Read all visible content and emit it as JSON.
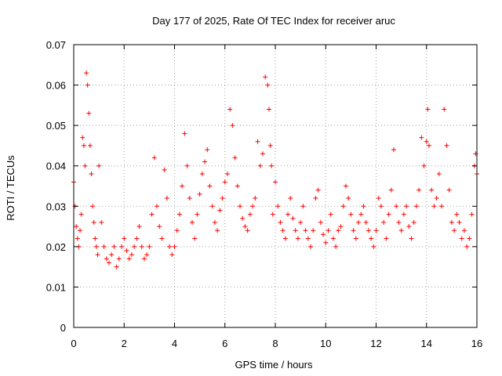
{
  "chart_data": {
    "type": "scatter",
    "title": "Day 177 of 2025, Rate Of TEC Index for receiver aruc",
    "xlabel": "GPS time / hours",
    "ylabel": "ROTI / TECUs",
    "xlim": [
      0,
      16
    ],
    "ylim": [
      0,
      0.07
    ],
    "x_ticks": [
      0,
      2,
      4,
      6,
      8,
      10,
      12,
      14,
      16
    ],
    "x_tick_labels": [
      "0",
      "2",
      "4",
      "6",
      "8",
      "10",
      "12",
      "14",
      "16"
    ],
    "y_ticks": [
      0,
      0.01,
      0.02,
      0.03,
      0.04,
      0.05,
      0.06,
      0.07
    ],
    "y_tick_labels": [
      "0",
      "0.01",
      "0.02",
      "0.03",
      "0.04",
      "0.05",
      "0.06",
      "0.07"
    ],
    "grid": true,
    "legend": "none",
    "marker": "plus",
    "color": "#ff0000",
    "series": [
      {
        "x": [
          0.0,
          0.05,
          0.1,
          0.15,
          0.2,
          0.25,
          0.3,
          0.35,
          0.4,
          0.45,
          0.5,
          0.55,
          0.6,
          0.65,
          0.7,
          0.75,
          0.8,
          0.85,
          0.9,
          0.95,
          1.0,
          1.1,
          1.2,
          1.3,
          1.4,
          1.5,
          1.6,
          1.7,
          1.8,
          1.9,
          2.0,
          2.1,
          2.2,
          2.3,
          2.4,
          2.5,
          2.6,
          2.7,
          2.8,
          2.9,
          3.0,
          3.1,
          3.2,
          3.3,
          3.4,
          3.5,
          3.6,
          3.7,
          3.8,
          3.9,
          4.0,
          4.1,
          4.2,
          4.3,
          4.4,
          4.5,
          4.6,
          4.7,
          4.8,
          4.9,
          5.0,
          5.1,
          5.2,
          5.3,
          5.4,
          5.5,
          5.6,
          5.7,
          5.8,
          5.9,
          6.0,
          6.1,
          6.2,
          6.3,
          6.4,
          6.5,
          6.6,
          6.7,
          6.8,
          6.9,
          7.0,
          7.1,
          7.2,
          7.3,
          7.4,
          7.5,
          7.6,
          7.7,
          7.75,
          7.8,
          7.85,
          7.9,
          8.0,
          8.1,
          8.2,
          8.3,
          8.4,
          8.5,
          8.6,
          8.7,
          8.8,
          8.9,
          9.0,
          9.1,
          9.2,
          9.3,
          9.4,
          9.5,
          9.6,
          9.7,
          9.8,
          9.9,
          10.0,
          10.1,
          10.2,
          10.3,
          10.4,
          10.5,
          10.6,
          10.7,
          10.8,
          10.9,
          11.0,
          11.1,
          11.2,
          11.3,
          11.4,
          11.5,
          11.6,
          11.7,
          11.8,
          11.9,
          12.0,
          12.1,
          12.2,
          12.3,
          12.4,
          12.5,
          12.6,
          12.7,
          12.8,
          12.9,
          13.0,
          13.1,
          13.2,
          13.3,
          13.4,
          13.5,
          13.6,
          13.7,
          13.8,
          13.9,
          14.0,
          14.05,
          14.1,
          14.2,
          14.3,
          14.4,
          14.5,
          14.6,
          14.7,
          14.8,
          14.9,
          15.0,
          15.1,
          15.2,
          15.3,
          15.4,
          15.5,
          15.6,
          15.7,
          15.8,
          15.9,
          15.95,
          16.0
        ],
        "y": [
          0.036,
          0.03,
          0.025,
          0.022,
          0.02,
          0.024,
          0.028,
          0.047,
          0.045,
          0.04,
          0.063,
          0.06,
          0.053,
          0.045,
          0.038,
          0.03,
          0.026,
          0.022,
          0.02,
          0.018,
          0.04,
          0.026,
          0.02,
          0.017,
          0.016,
          0.018,
          0.02,
          0.015,
          0.017,
          0.02,
          0.022,
          0.019,
          0.017,
          0.018,
          0.02,
          0.022,
          0.025,
          0.02,
          0.017,
          0.018,
          0.02,
          0.028,
          0.042,
          0.03,
          0.025,
          0.022,
          0.039,
          0.032,
          0.02,
          0.018,
          0.02,
          0.024,
          0.028,
          0.035,
          0.048,
          0.04,
          0.032,
          0.026,
          0.022,
          0.028,
          0.033,
          0.038,
          0.041,
          0.044,
          0.035,
          0.03,
          0.026,
          0.024,
          0.029,
          0.032,
          0.036,
          0.038,
          0.054,
          0.05,
          0.042,
          0.035,
          0.03,
          0.027,
          0.025,
          0.024,
          0.028,
          0.03,
          0.032,
          0.046,
          0.04,
          0.043,
          0.062,
          0.06,
          0.054,
          0.045,
          0.04,
          0.028,
          0.036,
          0.03,
          0.026,
          0.024,
          0.022,
          0.028,
          0.032,
          0.027,
          0.024,
          0.022,
          0.026,
          0.03,
          0.024,
          0.022,
          0.02,
          0.024,
          0.032,
          0.034,
          0.026,
          0.023,
          0.021,
          0.024,
          0.028,
          0.022,
          0.02,
          0.024,
          0.025,
          0.03,
          0.035,
          0.032,
          0.028,
          0.024,
          0.022,
          0.026,
          0.028,
          0.03,
          0.026,
          0.024,
          0.022,
          0.02,
          0.024,
          0.032,
          0.03,
          0.026,
          0.022,
          0.028,
          0.034,
          0.044,
          0.03,
          0.026,
          0.024,
          0.028,
          0.03,
          0.025,
          0.022,
          0.026,
          0.03,
          0.034,
          0.047,
          0.04,
          0.046,
          0.054,
          0.045,
          0.034,
          0.03,
          0.032,
          0.038,
          0.03,
          0.054,
          0.045,
          0.034,
          0.026,
          0.024,
          0.028,
          0.026,
          0.022,
          0.024,
          0.02,
          0.022,
          0.028,
          0.04,
          0.043,
          0.038
        ]
      }
    ]
  }
}
